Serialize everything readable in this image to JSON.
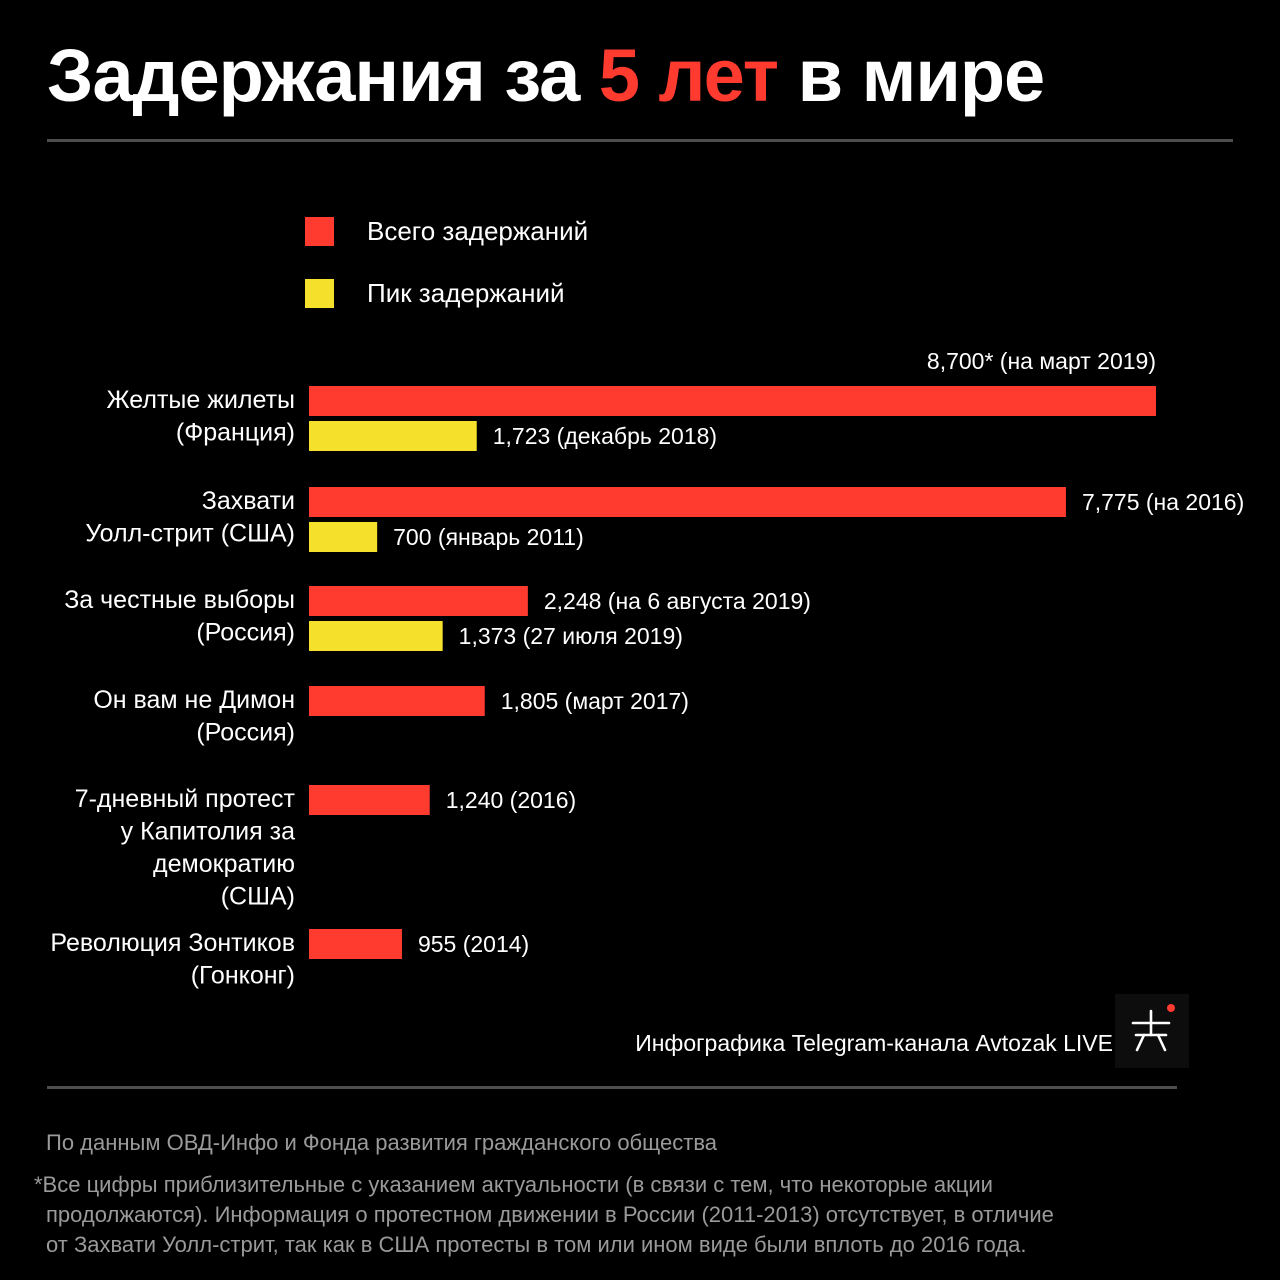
{
  "title": {
    "part1": "Задержания за ",
    "accent": "5 лет",
    "part2": " в мире"
  },
  "colors": {
    "total": "#ff3b30",
    "peak": "#f5e12c",
    "background": "#000000"
  },
  "legend": [
    {
      "key": "total",
      "label": "Всего задержаний"
    },
    {
      "key": "peak",
      "label": "Пик задержаний"
    }
  ],
  "chart_data": {
    "type": "bar",
    "orientation": "horizontal",
    "xlim": [
      0,
      8700
    ],
    "grid": false,
    "legend_placement": "top",
    "categories": [
      [
        "Желтые жилеты",
        "(Франция)"
      ],
      [
        "Захвати",
        "Уолл-стрит (США)"
      ],
      [
        "За честные выборы",
        "(Россия)"
      ],
      [
        "Он вам не Димон",
        "(Россия)"
      ],
      [
        "7-дневный протест",
        "у Капитолия за",
        "демократию",
        "(США)"
      ],
      [
        "Революция Зонтиков",
        "(Гонконг)"
      ]
    ],
    "series": [
      {
        "name": "Всего задержаний",
        "key": "total",
        "values": [
          8700,
          7775,
          2248,
          1805,
          1240,
          955
        ],
        "labels": [
          "8,700* (на март 2019)",
          "7,775 (на 2016)",
          "2,248 (на 6 августа 2019)",
          "1,805 (март 2017)",
          "1,240 (2016)",
          "955 (2014)"
        ]
      },
      {
        "name": "Пик задержаний",
        "key": "peak",
        "values": [
          1723,
          700,
          1373,
          null,
          null,
          null
        ],
        "labels": [
          "1,723 (декабрь 2018)",
          "700 (январь 2011)",
          "1,373 (27 июля 2019)",
          null,
          null,
          null
        ]
      }
    ]
  },
  "credit": "Инфографика Telegram-канала Avtozak LIVE",
  "source": "По данным ОВД-Инфо и Фонда развития гражданского общества",
  "footnote": [
    "*Все цифры приблизительные с указанием актуальности (в связи с тем, что некоторые акции",
    "продолжаются). Информация о протестном движении в России (2011-2013) отсутствует, в отличие",
    "от Захвати Уолл-стрит, так как в США протесты в том или ином виде были вплоть до 2016 года."
  ]
}
